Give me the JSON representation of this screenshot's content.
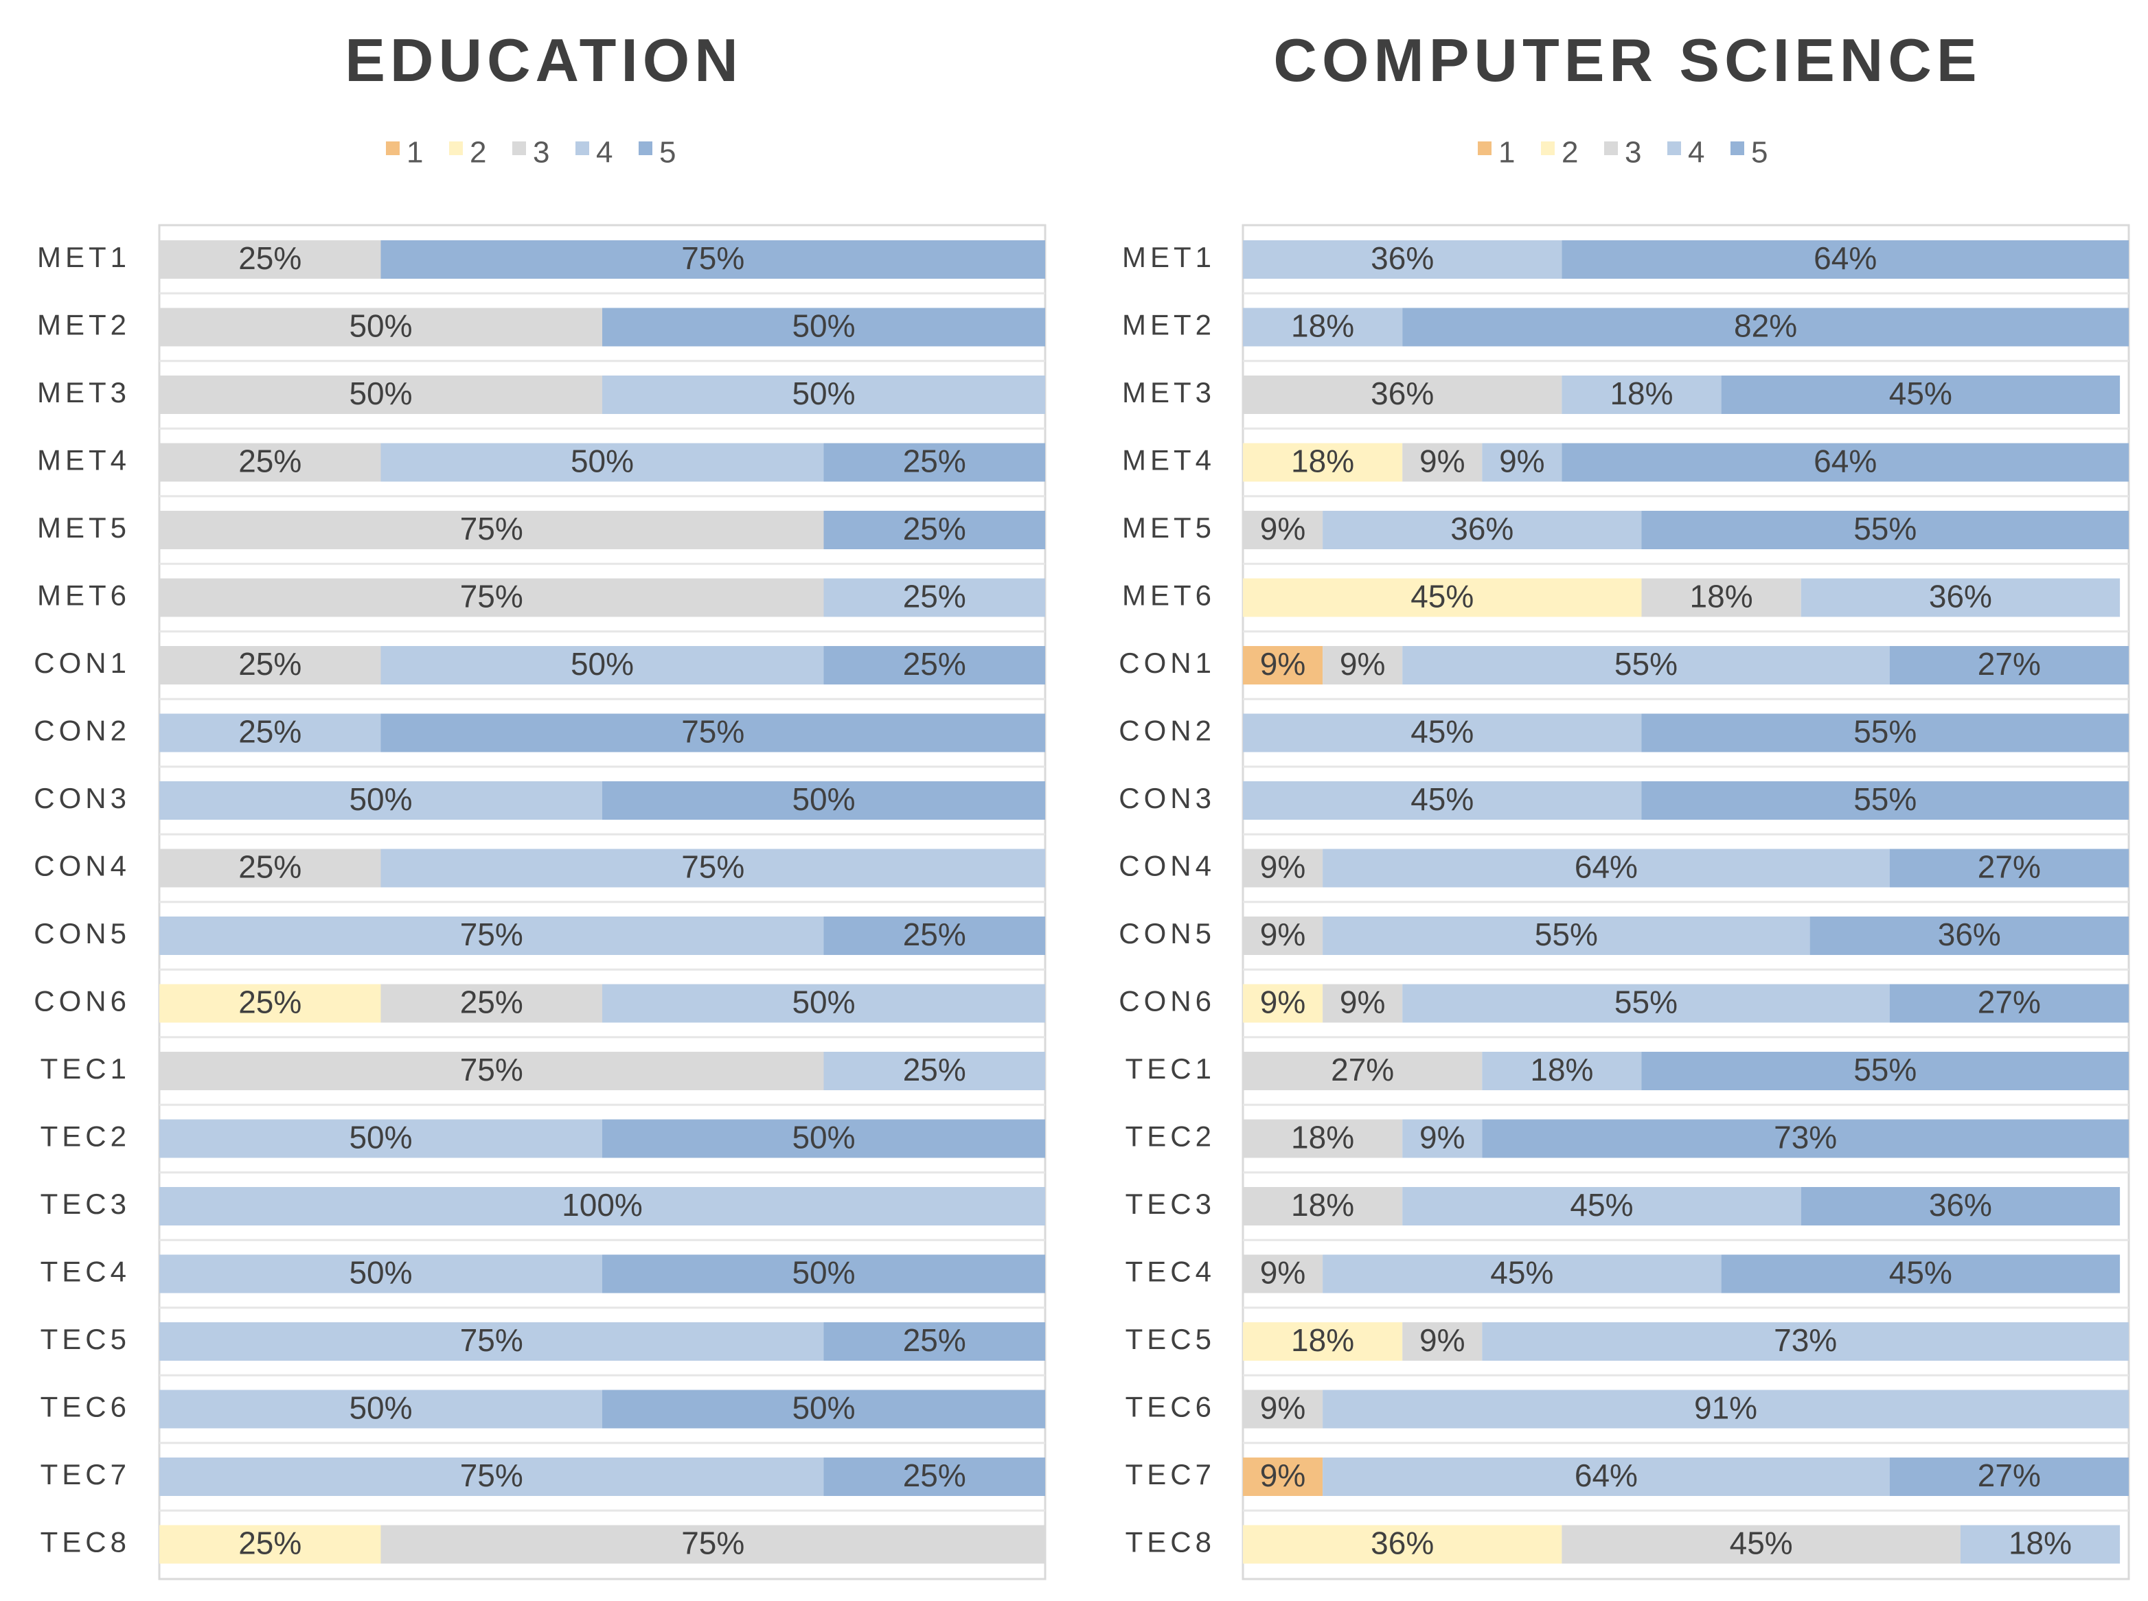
{
  "colors": {
    "1": "#f4c081",
    "2": "#fff2c2",
    "3": "#d9d9d9",
    "4": "#b8cce4",
    "5": "#95b3d7",
    "frame": "#d9d9d9",
    "text": "#404040"
  },
  "chart_data": [
    {
      "type": "bar",
      "orientation": "horizontal",
      "stacked": "100%",
      "title": "EDUCATION",
      "legend": {
        "position": "top",
        "entries": [
          "1",
          "2",
          "3",
          "4",
          "5"
        ]
      },
      "categories": [
        "MET1",
        "MET2",
        "MET3",
        "MET4",
        "MET5",
        "MET6",
        "CON1",
        "CON2",
        "CON3",
        "CON4",
        "CON5",
        "CON6",
        "TEC1",
        "TEC2",
        "TEC3",
        "TEC4",
        "TEC5",
        "TEC6",
        "TEC7",
        "TEC8"
      ],
      "series": [
        {
          "name": "1",
          "values": [
            0,
            0,
            0,
            0,
            0,
            0,
            0,
            0,
            0,
            0,
            0,
            0,
            0,
            0,
            0,
            0,
            0,
            0,
            0,
            0
          ]
        },
        {
          "name": "2",
          "values": [
            0,
            0,
            0,
            0,
            0,
            0,
            0,
            0,
            0,
            0,
            0,
            25,
            0,
            0,
            0,
            0,
            0,
            0,
            0,
            25
          ]
        },
        {
          "name": "3",
          "values": [
            25,
            50,
            50,
            25,
            75,
            75,
            25,
            0,
            0,
            25,
            0,
            25,
            75,
            0,
            0,
            0,
            0,
            0,
            0,
            75
          ]
        },
        {
          "name": "4",
          "values": [
            0,
            0,
            50,
            50,
            0,
            25,
            50,
            25,
            50,
            75,
            75,
            50,
            25,
            50,
            100,
            50,
            75,
            50,
            75,
            0
          ]
        },
        {
          "name": "5",
          "values": [
            75,
            50,
            0,
            25,
            25,
            0,
            25,
            75,
            50,
            0,
            25,
            0,
            0,
            50,
            0,
            50,
            25,
            50,
            25,
            0
          ]
        }
      ],
      "xlim": [
        0,
        100
      ]
    },
    {
      "type": "bar",
      "orientation": "horizontal",
      "stacked": "100%",
      "title": "COMPUTER SCIENCE",
      "legend": {
        "position": "top",
        "entries": [
          "1",
          "2",
          "3",
          "4",
          "5"
        ]
      },
      "categories": [
        "MET1",
        "MET2",
        "MET3",
        "MET4",
        "MET5",
        "MET6",
        "CON1",
        "CON2",
        "CON3",
        "CON4",
        "CON5",
        "CON6",
        "TEC1",
        "TEC2",
        "TEC3",
        "TEC4",
        "TEC5",
        "TEC6",
        "TEC7",
        "TEC8"
      ],
      "series": [
        {
          "name": "1",
          "values": [
            0,
            0,
            0,
            0,
            0,
            0,
            9,
            0,
            0,
            0,
            0,
            0,
            0,
            0,
            0,
            0,
            0,
            0,
            9,
            0
          ]
        },
        {
          "name": "2",
          "values": [
            0,
            0,
            0,
            18,
            0,
            45,
            0,
            0,
            0,
            0,
            0,
            9,
            0,
            0,
            0,
            0,
            18,
            0,
            0,
            36
          ]
        },
        {
          "name": "3",
          "values": [
            0,
            0,
            36,
            9,
            9,
            18,
            9,
            0,
            0,
            9,
            9,
            9,
            27,
            18,
            18,
            9,
            9,
            9,
            0,
            45
          ]
        },
        {
          "name": "4",
          "values": [
            36,
            18,
            18,
            9,
            36,
            36,
            55,
            45,
            45,
            64,
            55,
            55,
            18,
            9,
            45,
            45,
            73,
            91,
            64,
            18
          ]
        },
        {
          "name": "5",
          "values": [
            64,
            82,
            45,
            64,
            55,
            0,
            27,
            55,
            55,
            27,
            36,
            27,
            55,
            73,
            36,
            45,
            0,
            0,
            27,
            0
          ]
        }
      ],
      "xlim": [
        0,
        100
      ]
    }
  ]
}
